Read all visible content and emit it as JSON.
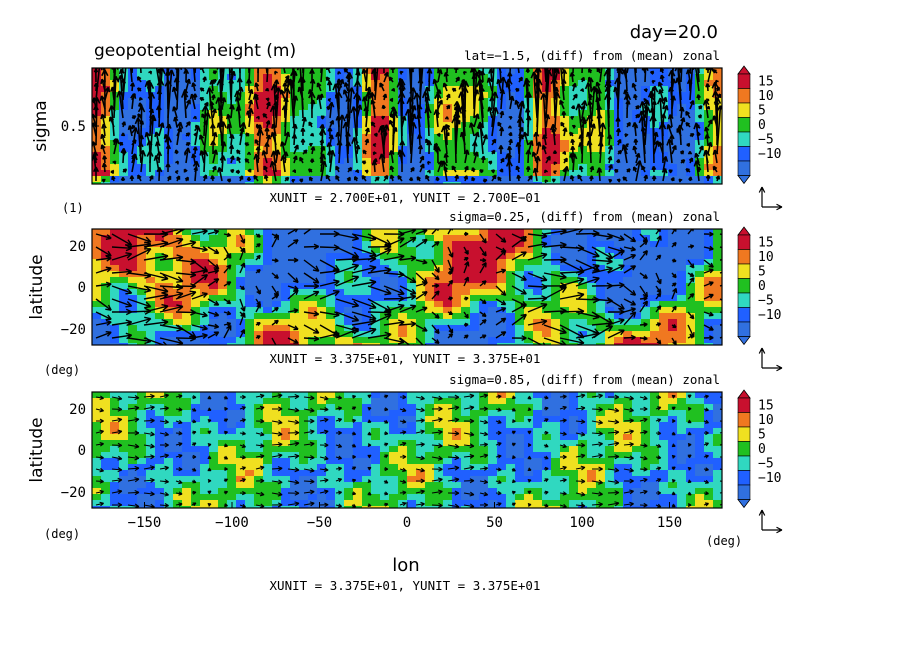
{
  "header": {
    "day": "day=20.0",
    "title": "geopotential height (m)"
  },
  "colorbar": {
    "levels": [
      "15",
      "10",
      "5",
      "0",
      "−5",
      "−10"
    ],
    "colors": [
      "#c8102e",
      "#f07820",
      "#f0e020",
      "#20c020",
      "#30d8c0",
      "#2060ff",
      "#3070e0"
    ]
  },
  "panels": [
    {
      "subtitle": "lat=−1.5, (diff) from (mean) zonal",
      "ylabel": "sigma",
      "yticks": [
        "0.5"
      ],
      "unit_left": "(1)",
      "unit_note": "XUNIT = 2.700E+01, YUNIT = 2.700E−01"
    },
    {
      "subtitle": "sigma=0.25, (diff) from (mean) zonal",
      "ylabel": "latitude",
      "yticks": [
        "20",
        "0",
        "−20"
      ],
      "unit_left": "(deg)",
      "unit_note": "XUNIT = 3.375E+01, YUNIT = 3.375E+01"
    },
    {
      "subtitle": "sigma=0.85, (diff) from (mean) zonal",
      "ylabel": "latitude",
      "yticks": [
        "20",
        "0",
        "−20"
      ],
      "unit_left": "(deg)",
      "unit_right": "(deg)",
      "xlabel": "lon",
      "xticks": [
        "−150",
        "−100",
        "−50",
        "0",
        "50",
        "100",
        "150"
      ],
      "unit_note": "XUNIT = 3.375E+01, YUNIT = 3.375E+01"
    }
  ],
  "chart_data": {
    "type": "heatmap",
    "title": "geopotential height (m)",
    "time": "day=20.0",
    "contour_levels": [
      -10,
      -5,
      0,
      5,
      10,
      15
    ],
    "x": {
      "label": "lon",
      "unit": "deg",
      "range": [
        -180,
        180
      ],
      "ticks": [
        -150,
        -100,
        -50,
        0,
        50,
        100,
        150
      ]
    },
    "panels": [
      {
        "section": "lat=-1.5, (diff) from (mean) zonal",
        "y": {
          "label": "sigma",
          "unit": "1",
          "range": [
            0,
            1
          ],
          "ticks": [
            0.5
          ]
        },
        "vector_units": {
          "x": 27.0,
          "y": 0.27
        }
      },
      {
        "section": "sigma=0.25, (diff) from (mean) zonal",
        "y": {
          "label": "latitude",
          "unit": "deg",
          "range": [
            -30,
            30
          ],
          "ticks": [
            -20,
            0,
            20
          ]
        },
        "vector_units": {
          "x": 33.75,
          "y": 33.75
        }
      },
      {
        "section": "sigma=0.85, (diff) from (mean) zonal",
        "y": {
          "label": "latitude",
          "unit": "deg",
          "range": [
            -30,
            30
          ],
          "ticks": [
            -20,
            0,
            20
          ]
        },
        "vector_units": {
          "x": 33.75,
          "y": 33.75
        }
      }
    ]
  }
}
